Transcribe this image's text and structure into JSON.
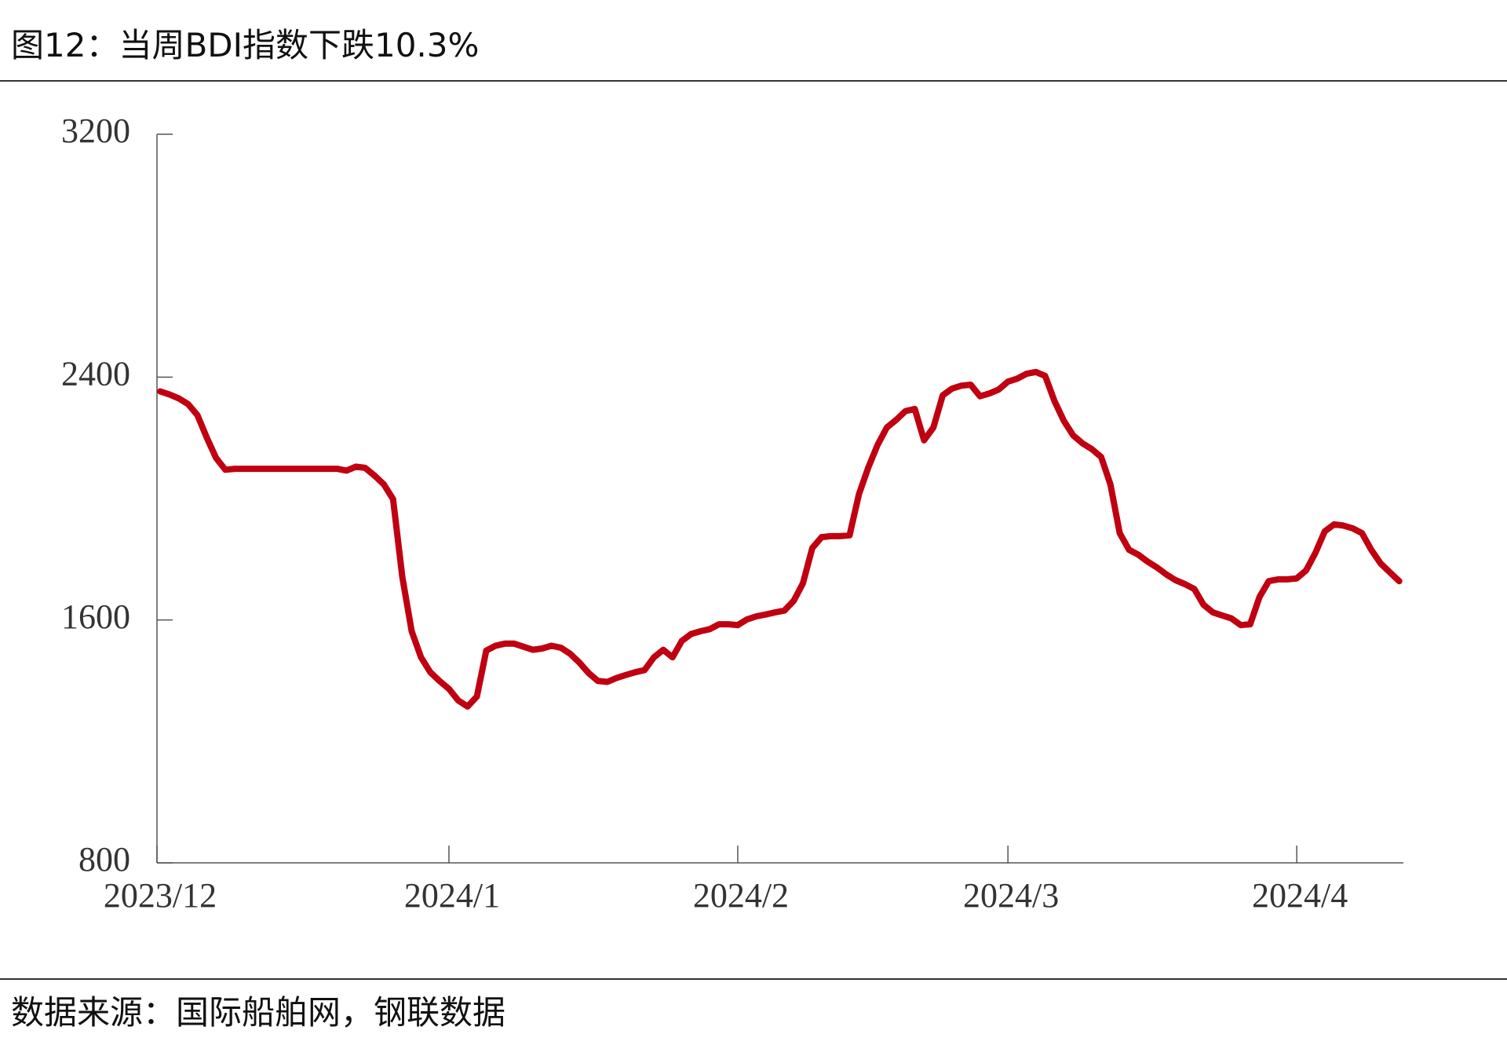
{
  "chart_data": {
    "type": "line",
    "title": "图12：当周BDI指数下跌10.3%",
    "source": "数据来源：国际船舶网，钢联数据",
    "color": "#c00010",
    "categories": [
      "2023/12",
      null,
      null,
      null,
      null,
      null,
      null,
      null,
      null,
      null,
      null,
      null,
      null,
      null,
      null,
      null,
      null,
      null,
      null,
      null,
      null,
      null,
      null,
      null,
      null,
      null,
      null,
      null,
      null,
      null,
      null,
      "2024/1",
      null,
      null,
      null,
      null,
      null,
      null,
      null,
      null,
      null,
      null,
      null,
      null,
      null,
      null,
      null,
      null,
      null,
      null,
      null,
      null,
      null,
      null,
      null,
      null,
      null,
      null,
      null,
      null,
      null,
      null,
      "2024/2",
      null,
      null,
      null,
      null,
      null,
      null,
      null,
      null,
      null,
      null,
      null,
      null,
      null,
      null,
      null,
      null,
      null,
      null,
      null,
      null,
      null,
      null,
      null,
      null,
      null,
      null,
      null,
      null,
      "2024/3",
      null,
      null,
      null,
      null,
      null,
      null,
      null,
      null,
      null,
      null,
      null,
      null,
      null,
      null,
      null,
      null,
      null,
      null,
      null,
      null,
      null,
      null,
      null,
      null,
      null,
      null,
      null,
      null,
      null,
      null,
      "2024/4",
      null,
      null,
      null,
      null,
      null,
      null,
      null,
      null,
      null,
      null,
      null
    ],
    "values": [
      2353,
      2343,
      2330,
      2311,
      2275,
      2201,
      2134,
      2095,
      2098,
      2098,
      2098,
      2098,
      2098,
      2098,
      2098,
      2098,
      2098,
      2098,
      2098,
      2098,
      2092,
      2105,
      2101,
      2076,
      2047,
      1998,
      1741,
      1563,
      1477,
      1428,
      1399,
      1373,
      1335,
      1315,
      1348,
      1499,
      1515,
      1522,
      1522,
      1512,
      1502,
      1506,
      1515,
      1509,
      1489,
      1460,
      1425,
      1399,
      1396,
      1409,
      1419,
      1428,
      1435,
      1477,
      1502,
      1477,
      1531,
      1554,
      1563,
      1570,
      1586,
      1586,
      1583,
      1602,
      1612,
      1618,
      1625,
      1631,
      1663,
      1721,
      1837,
      1873,
      1876,
      1876,
      1879,
      2014,
      2101,
      2176,
      2234,
      2259,
      2288,
      2295,
      2192,
      2234,
      2340,
      2362,
      2372,
      2375,
      2337,
      2346,
      2359,
      2385,
      2395,
      2411,
      2417,
      2404,
      2321,
      2256,
      2208,
      2182,
      2163,
      2137,
      2047,
      1886,
      1831,
      1815,
      1792,
      1773,
      1750,
      1731,
      1718,
      1702,
      1650,
      1625,
      1615,
      1605,
      1583,
      1586,
      1676,
      1728,
      1734,
      1734,
      1737,
      1763,
      1821,
      1892,
      1915,
      1911,
      1902,
      1886,
      1831,
      1786,
      1757,
      1728
    ],
    "ylim": [
      800,
      3200
    ],
    "yticks": [
      800,
      1600,
      2400,
      3200
    ]
  }
}
